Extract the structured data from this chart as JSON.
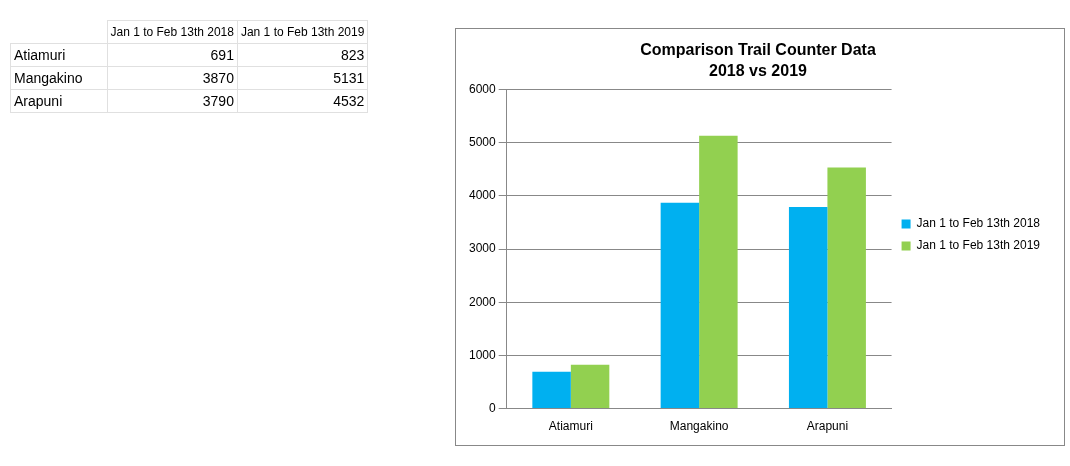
{
  "chart_data": {
    "type": "bar",
    "title": "Comparison Trail Counter Data",
    "subtitle": "2018 vs 2019",
    "categories": [
      "Atiamuri",
      "Mangakino",
      "Arapuni"
    ],
    "series": [
      {
        "name": "Jan 1 to Feb 13th 2018",
        "color": "#00b0f0",
        "values": [
          691,
          3870,
          3790
        ]
      },
      {
        "name": "Jan 1 to Feb 13th 2019",
        "color": "#92d050",
        "values": [
          823,
          5131,
          4532
        ]
      }
    ],
    "ylim": [
      0,
      6000
    ],
    "yticks": [
      0,
      1000,
      2000,
      3000,
      4000,
      5000,
      6000
    ],
    "grid": "y",
    "legend": "right",
    "annotations": [
      "691",
      "823",
      "3870",
      "5131",
      "3790",
      "4532"
    ]
  }
}
